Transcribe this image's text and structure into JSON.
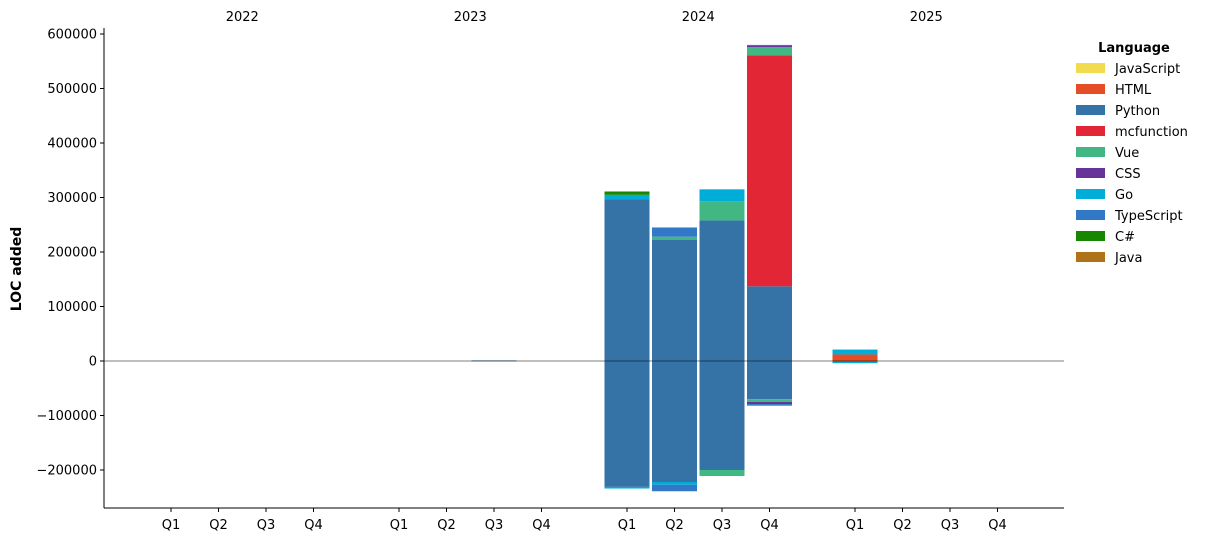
{
  "chart_data": {
    "type": "bar",
    "stacked": true,
    "ylabel": "LOC added",
    "ylim": [
      -270000,
      610000
    ],
    "yticks": [
      600000,
      500000,
      400000,
      300000,
      200000,
      100000,
      0,
      -100000,
      -200000
    ],
    "years": [
      "2022",
      "2023",
      "2024",
      "2025"
    ],
    "quarters": [
      "Q1",
      "Q2",
      "Q3",
      "Q4"
    ],
    "grid": false,
    "zero_line": true,
    "legend": {
      "title": "Language",
      "position": "top-right-outside",
      "entries": [
        {
          "name": "JavaScript",
          "color": "#f0dc4e"
        },
        {
          "name": "HTML",
          "color": "#e44d26"
        },
        {
          "name": "Python",
          "color": "#3572a5"
        },
        {
          "name": "mcfunction",
          "color": "#e32636"
        },
        {
          "name": "Vue",
          "color": "#41b883"
        },
        {
          "name": "CSS",
          "color": "#663399"
        },
        {
          "name": "Go",
          "color": "#00add8"
        },
        {
          "name": "TypeScript",
          "color": "#3178c6"
        },
        {
          "name": "C#",
          "color": "#178600"
        },
        {
          "name": "Java",
          "color": "#b07219"
        }
      ]
    },
    "bars": [
      {
        "year": "2023",
        "quarter": "Q3",
        "positive": [
          {
            "lang": "Python",
            "value": 1000
          }
        ],
        "negative": []
      },
      {
        "year": "2024",
        "quarter": "Q1",
        "positive": [
          {
            "lang": "Python",
            "value": 297000
          },
          {
            "lang": "Go",
            "value": 8000
          },
          {
            "lang": "C#",
            "value": 6000
          }
        ],
        "negative": [
          {
            "lang": "Python",
            "value": -231000
          },
          {
            "lang": "Go",
            "value": -3000
          }
        ]
      },
      {
        "year": "2024",
        "quarter": "Q2",
        "positive": [
          {
            "lang": "Python",
            "value": 222000
          },
          {
            "lang": "Vue",
            "value": 6000
          },
          {
            "lang": "TypeScript",
            "value": 17000
          }
        ],
        "negative": [
          {
            "lang": "Python",
            "value": -222000
          },
          {
            "lang": "Go",
            "value": -5000
          },
          {
            "lang": "TypeScript",
            "value": -12000
          }
        ]
      },
      {
        "year": "2024",
        "quarter": "Q3",
        "positive": [
          {
            "lang": "Python",
            "value": 258000
          },
          {
            "lang": "Vue",
            "value": 35000
          },
          {
            "lang": "Go",
            "value": 22000
          }
        ],
        "negative": [
          {
            "lang": "Python",
            "value": -200000
          },
          {
            "lang": "Vue",
            "value": -11000
          }
        ]
      },
      {
        "year": "2024",
        "quarter": "Q4",
        "positive": [
          {
            "lang": "Python",
            "value": 137000
          },
          {
            "lang": "mcfunction",
            "value": 424000
          },
          {
            "lang": "Vue",
            "value": 15000
          },
          {
            "lang": "CSS",
            "value": 2000
          },
          {
            "lang": "TypeScript",
            "value": 2000
          }
        ],
        "negative": [
          {
            "lang": "Python",
            "value": -70000
          },
          {
            "lang": "Vue",
            "value": -5000
          },
          {
            "lang": "CSS",
            "value": -4000
          },
          {
            "lang": "TypeScript",
            "value": -3000
          }
        ]
      },
      {
        "year": "2025",
        "quarter": "Q1",
        "positive": [
          {
            "lang": "HTML",
            "value": 12000
          },
          {
            "lang": "Go",
            "value": 9000
          }
        ],
        "negative": [
          {
            "lang": "Go",
            "value": -4000
          }
        ]
      }
    ]
  }
}
